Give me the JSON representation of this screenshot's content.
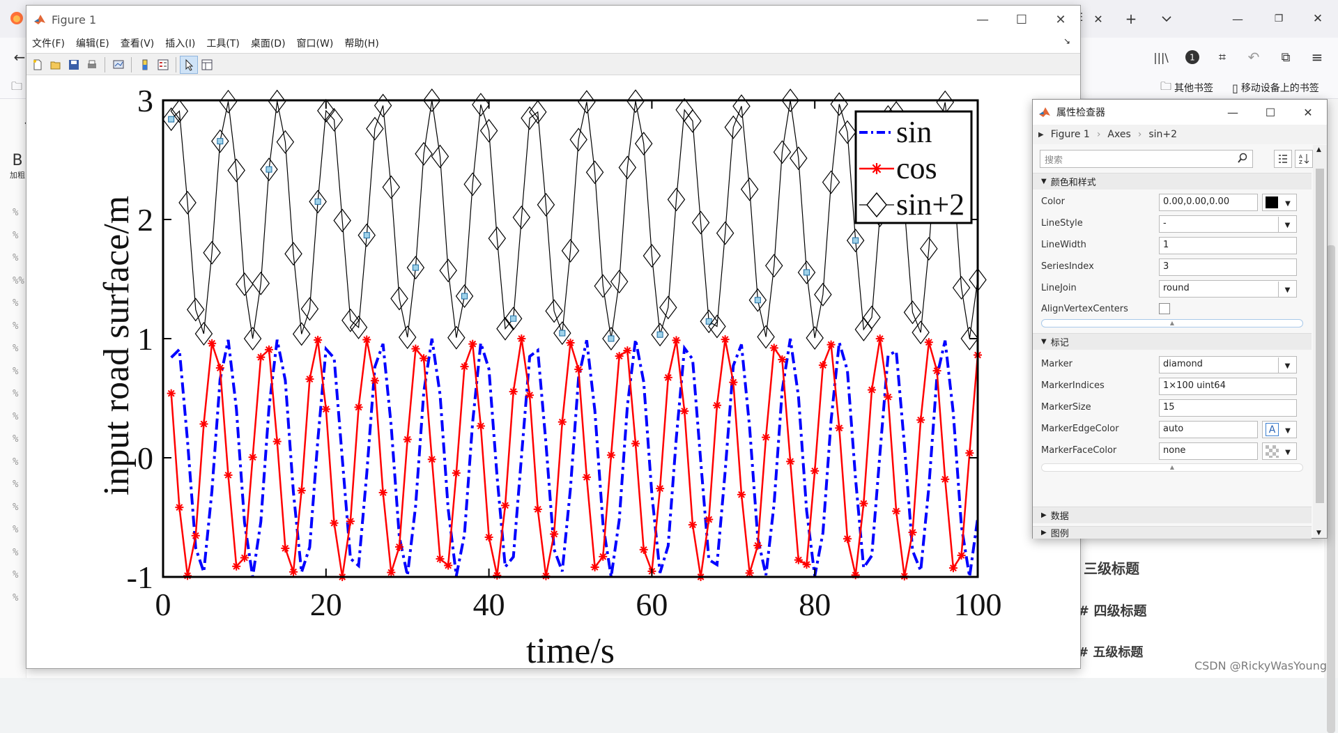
{
  "browser": {
    "tab_fragment": "E",
    "bookmarks": [
      "其他书签",
      "移动设备上的书签"
    ],
    "editor": {
      "bold_glyph": "B",
      "bold_label": "加粗",
      "gutter_marks": [
        "%",
        "%",
        "%",
        "%%",
        "%",
        "%",
        "%",
        "%",
        "%",
        "%",
        "%",
        "%",
        "%",
        "%",
        "%",
        "%",
        "%",
        "%"
      ],
      "outline": [
        "三级标题",
        "# 四级标题",
        "# 五级标题"
      ]
    },
    "watermark": "CSDN @RickyWasYoung"
  },
  "figure_window": {
    "title": "Figure 1",
    "menu": [
      "文件(F)",
      "编辑(E)",
      "查看(V)",
      "插入(I)",
      "工具(T)",
      "桌面(D)",
      "窗口(W)",
      "帮助(H)"
    ]
  },
  "chart_data": {
    "type": "line",
    "title": "",
    "xlabel": "time/s",
    "ylabel": "input road surface/m",
    "xlim": [
      0,
      100
    ],
    "ylim": [
      -1,
      3
    ],
    "xticks": [
      "0",
      "20",
      "40",
      "60",
      "80",
      "100"
    ],
    "yticks": [
      "-1",
      "0",
      "1",
      "2",
      "3"
    ],
    "legend": {
      "position": "top-right",
      "entries": [
        "sin",
        "cos",
        "sin+2"
      ]
    },
    "series": [
      {
        "name": "sin",
        "function": "sin(t)",
        "t_range": [
          1,
          100
        ],
        "num_points": 100,
        "color": "#0000ff",
        "line_style": "dash-dot",
        "marker": "none"
      },
      {
        "name": "cos",
        "function": "cos(t)",
        "t_range": [
          1,
          100
        ],
        "num_points": 100,
        "color": "#ff0000",
        "line_style": "solid",
        "marker": "asterisk"
      },
      {
        "name": "sin+2",
        "function": "sin(t)+2",
        "t_range": [
          1,
          100
        ],
        "num_points": 100,
        "color": "#000000",
        "line_style": "solid",
        "marker": "diamond",
        "marker_size": 15
      }
    ]
  },
  "inspector": {
    "title": "属性检查器",
    "breadcrumb": [
      "Figure 1",
      "Axes",
      "sin+2"
    ],
    "search_placeholder": "搜索",
    "sections": {
      "color_style": "颜色和样式",
      "marker": "标记",
      "data": "数据",
      "legend": "图例"
    },
    "properties": {
      "color": {
        "label": "Color",
        "value": "0.00,0.00,0.00",
        "swatch": "#000000"
      },
      "linestyle": {
        "label": "LineStyle",
        "value": "-"
      },
      "linewidth": {
        "label": "LineWidth",
        "value": "1"
      },
      "seriesindex": {
        "label": "SeriesIndex",
        "value": "3"
      },
      "linejoin": {
        "label": "LineJoin",
        "value": "round"
      },
      "alignvertex": {
        "label": "AlignVertexCenters",
        "checked": false
      },
      "marker": {
        "label": "Marker",
        "value": "diamond"
      },
      "markerindices": {
        "label": "MarkerIndices",
        "value": "1×100 uint64"
      },
      "markersize": {
        "label": "MarkerSize",
        "value": "15"
      },
      "markeredgecolor": {
        "label": "MarkerEdgeColor",
        "value": "auto"
      },
      "markerfacecolor": {
        "label": "MarkerFaceColor",
        "value": "none"
      }
    }
  }
}
